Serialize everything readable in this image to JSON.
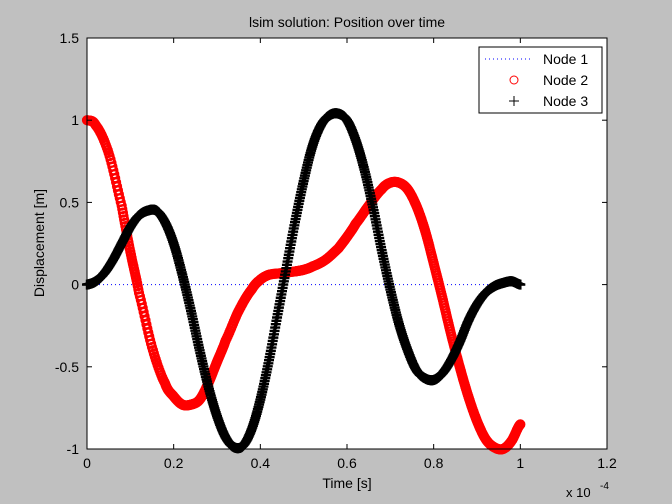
{
  "chart_data": {
    "type": "line",
    "title": "lsim solution: Position over time",
    "xlabel": "Time [s]",
    "ylabel": "Displacement [m]",
    "x_exponent_label": "x 10",
    "x_exponent_power": "-4",
    "xlim": [
      0,
      1.2
    ],
    "ylim": [
      -1,
      1.5
    ],
    "x_ticks": [
      0,
      0.2,
      0.4,
      0.6,
      0.8,
      1,
      1.2
    ],
    "x_tick_labels": [
      "0",
      "0.2",
      "0.4",
      "0.6",
      "0.8",
      "1",
      "1.2"
    ],
    "y_ticks": [
      -1,
      -0.5,
      0,
      0.5,
      1,
      1.5
    ],
    "y_tick_labels": [
      "-1",
      "-0.5",
      "0",
      "0.5",
      "1",
      "1.5"
    ],
    "grid": false,
    "legend_position": "top-right",
    "series": [
      {
        "name": "Node 1",
        "marker": "dotted-line",
        "color": "#0000ff",
        "x": [
          0,
          1.0
        ],
        "y": [
          0,
          0
        ]
      },
      {
        "name": "Node 2",
        "marker": "circle",
        "color": "#ff0000",
        "x": [
          0,
          0.02,
          0.05,
          0.08,
          0.1,
          0.12,
          0.15,
          0.18,
          0.2,
          0.22,
          0.24,
          0.26,
          0.28,
          0.3,
          0.32,
          0.35,
          0.38,
          0.4,
          0.42,
          0.45,
          0.48,
          0.5,
          0.52,
          0.55,
          0.58,
          0.6,
          0.62,
          0.65,
          0.68,
          0.7,
          0.72,
          0.74,
          0.76,
          0.78,
          0.8,
          0.82,
          0.84,
          0.86,
          0.88,
          0.9,
          0.92,
          0.94,
          0.96,
          0.98,
          1.0
        ],
        "y": [
          1.0,
          0.97,
          0.8,
          0.48,
          0.2,
          -0.05,
          -0.38,
          -0.6,
          -0.68,
          -0.73,
          -0.73,
          -0.7,
          -0.6,
          -0.47,
          -0.34,
          -0.16,
          -0.03,
          0.03,
          0.06,
          0.07,
          0.08,
          0.09,
          0.11,
          0.15,
          0.22,
          0.29,
          0.37,
          0.48,
          0.58,
          0.62,
          0.62,
          0.58,
          0.48,
          0.33,
          0.13,
          -0.08,
          -0.3,
          -0.5,
          -0.68,
          -0.83,
          -0.94,
          -0.99,
          -1.0,
          -0.95,
          -0.85
        ]
      },
      {
        "name": "Node 3",
        "marker": "plus",
        "color": "#000000",
        "x": [
          0,
          0.02,
          0.04,
          0.06,
          0.08,
          0.1,
          0.12,
          0.14,
          0.16,
          0.18,
          0.2,
          0.22,
          0.24,
          0.26,
          0.28,
          0.3,
          0.32,
          0.34,
          0.36,
          0.38,
          0.4,
          0.42,
          0.44,
          0.46,
          0.48,
          0.5,
          0.52,
          0.54,
          0.56,
          0.58,
          0.6,
          0.62,
          0.64,
          0.66,
          0.68,
          0.7,
          0.72,
          0.74,
          0.76,
          0.78,
          0.8,
          0.82,
          0.84,
          0.86,
          0.88,
          0.9,
          0.92,
          0.94,
          0.96,
          0.98,
          1.0
        ],
        "y": [
          0,
          0.02,
          0.07,
          0.15,
          0.25,
          0.35,
          0.42,
          0.45,
          0.45,
          0.38,
          0.25,
          0.06,
          -0.16,
          -0.4,
          -0.62,
          -0.8,
          -0.93,
          -0.99,
          -0.98,
          -0.88,
          -0.7,
          -0.46,
          -0.18,
          0.1,
          0.38,
          0.63,
          0.84,
          0.97,
          1.03,
          1.04,
          1.0,
          0.88,
          0.7,
          0.47,
          0.21,
          -0.03,
          -0.24,
          -0.4,
          -0.52,
          -0.57,
          -0.58,
          -0.54,
          -0.46,
          -0.35,
          -0.22,
          -0.12,
          -0.05,
          -0.01,
          0.01,
          0.02,
          0.0
        ]
      }
    ]
  }
}
